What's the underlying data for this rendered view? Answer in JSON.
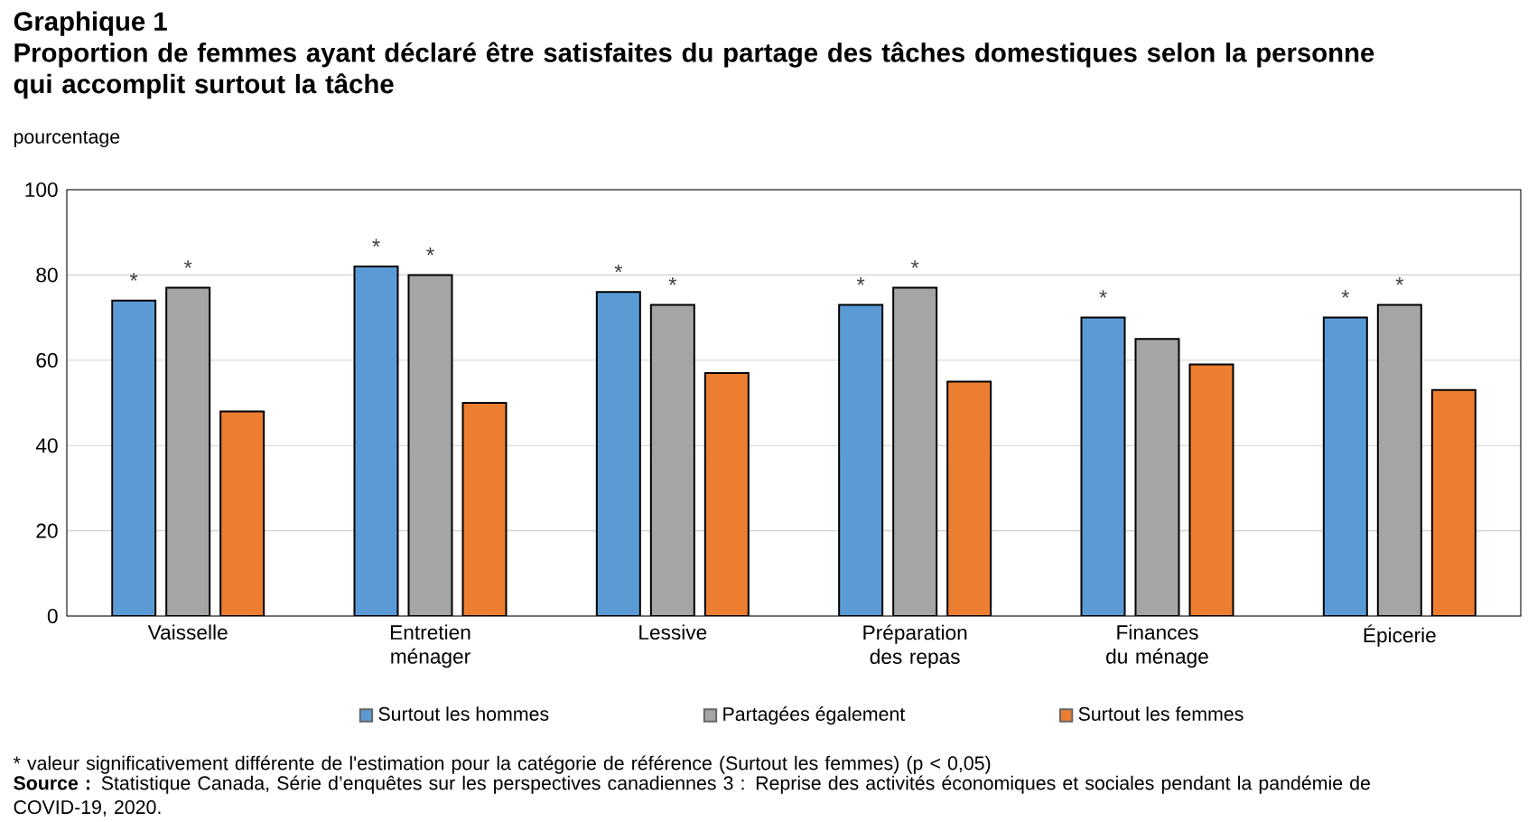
{
  "chart_data": {
    "type": "bar",
    "title": "Graphique 1",
    "subtitle": "Proportion de femmes ayant déclaré être satisfaites du partage des tâches domestiques selon la personne qui accomplit surtout la tâche",
    "ylabel": "pourcentage",
    "categories": [
      "Vaisselle",
      "Entretien ménager",
      "Lessive",
      "Préparation des repas",
      "Finances du ménage",
      "Épicerie"
    ],
    "series": [
      {
        "name": "Surtout les hommes",
        "color": "#5b9bd5",
        "values": [
          74,
          82,
          76,
          73,
          70,
          70
        ],
        "value_labels": [
          "*",
          "*",
          "*",
          "*",
          "*",
          "*"
        ]
      },
      {
        "name": "Partagées également",
        "color": "#a5a5a5",
        "values": [
          77,
          80,
          73,
          77,
          65,
          73
        ],
        "value_labels": [
          "*",
          "*",
          "*",
          "*",
          null,
          "*"
        ]
      },
      {
        "name": "Surtout les femmes",
        "color": "#ed7d31",
        "values": [
          48,
          50,
          57,
          55,
          59,
          53
        ]
      }
    ],
    "ylim": [
      0,
      100
    ],
    "yticks": [
      0,
      20,
      40,
      60,
      80,
      100
    ],
    "grid": "y",
    "legend": "bottom",
    "annotations": [
      "* valeur significativement différente de l'estimation pour la catégorie de référence (Surtout les femmes) (p < 0,05)",
      "**Source :** Statistique Canada, Série d’enquêtes sur les perspectives canadiennes 3 : Reprise des activités économiques et sociales pendant la pandémie de COVID-19, 2020."
    ]
  }
}
